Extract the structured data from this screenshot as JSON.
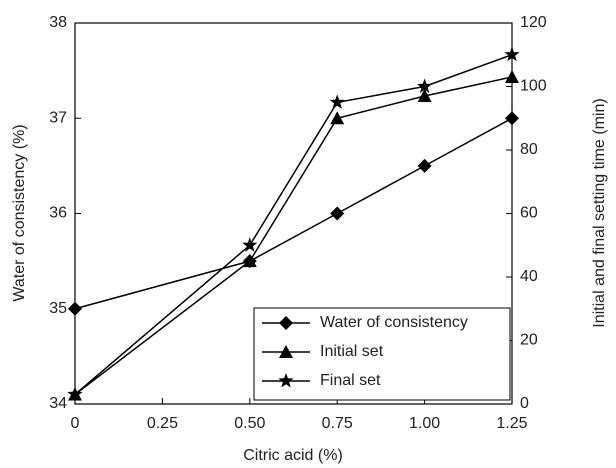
{
  "chart_data": {
    "type": "line",
    "x_label": "Citric acid (%)",
    "y_label": "Water of consistency (%)",
    "y2_label": "Initial and final setting time (min)",
    "x": [
      0,
      0.5,
      0.75,
      1.0,
      1.25
    ],
    "xlim": [
      0,
      1.25
    ],
    "xticks": [
      0,
      0.25,
      {
        "value": 0.5,
        "label": "0.50"
      },
      0.75,
      {
        "value": 1.0,
        "label": "1.00"
      },
      1.25
    ],
    "ylim": [
      34,
      38
    ],
    "yticks": [
      34,
      35,
      36,
      37,
      38
    ],
    "y2lim": [
      0,
      120
    ],
    "y2ticks": [
      0,
      20,
      40,
      60,
      80,
      100,
      120
    ],
    "legend": "lower right",
    "series": [
      {
        "name": "Water of consistency",
        "color": "#000000",
        "marker": "diamond",
        "values": [
          35,
          35.5,
          36,
          36.5,
          37
        ]
      },
      {
        "name": "Initial set",
        "color": "#000000",
        "marker": "triangle",
        "axis": "y2",
        "values": [
          3,
          45,
          90,
          97,
          103
        ]
      },
      {
        "name": "Final set",
        "color": "#000000",
        "marker": "star",
        "axis": "y2",
        "values": [
          3,
          50,
          95,
          100,
          110
        ]
      }
    ]
  }
}
